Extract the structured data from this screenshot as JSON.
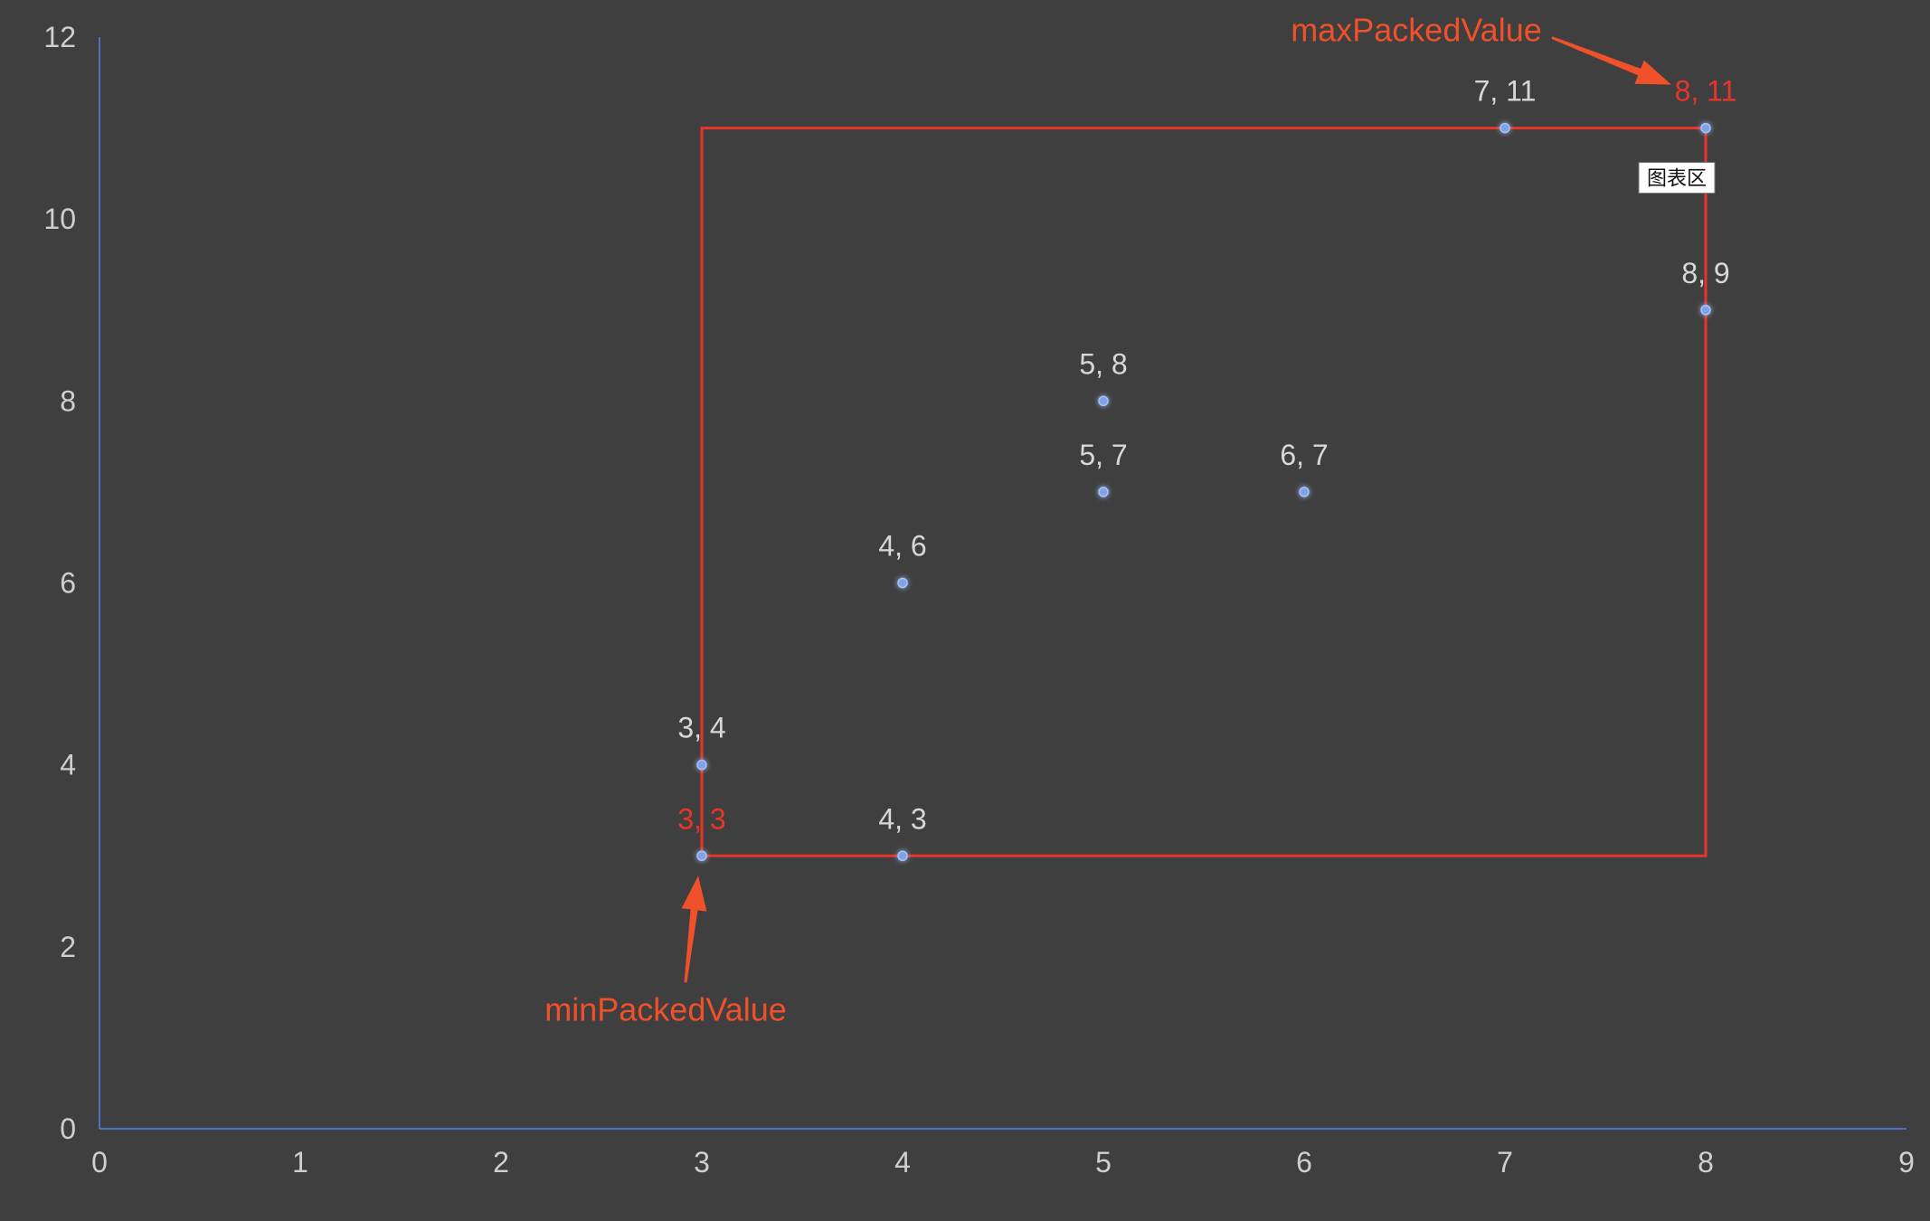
{
  "chart_data": {
    "type": "scatter",
    "title": "",
    "xlabel": "",
    "ylabel": "",
    "xlim": [
      0,
      9
    ],
    "ylim": [
      0,
      12
    ],
    "x_ticks": [
      "0",
      "1",
      "2",
      "3",
      "4",
      "5",
      "6",
      "7",
      "8",
      "9"
    ],
    "y_ticks": [
      "0",
      "2",
      "4",
      "6",
      "8",
      "10",
      "12"
    ],
    "grid": false,
    "legend": "none",
    "points": [
      {
        "x": 3,
        "y": 3,
        "label": "3, 3",
        "highlight": true
      },
      {
        "x": 3,
        "y": 4,
        "label": "3, 4",
        "highlight": false
      },
      {
        "x": 4,
        "y": 3,
        "label": "4, 3",
        "highlight": false
      },
      {
        "x": 4,
        "y": 6,
        "label": "4, 6",
        "highlight": false
      },
      {
        "x": 5,
        "y": 7,
        "label": "5, 7",
        "highlight": false
      },
      {
        "x": 5,
        "y": 8,
        "label": "5, 8",
        "highlight": false
      },
      {
        "x": 6,
        "y": 7,
        "label": "6, 7",
        "highlight": false
      },
      {
        "x": 7,
        "y": 11,
        "label": "7, 11",
        "highlight": false
      },
      {
        "x": 8,
        "y": 9,
        "label": "8, 9",
        "highlight": false
      },
      {
        "x": 8,
        "y": 11,
        "label": "8, 11",
        "highlight": true
      }
    ],
    "bounding_box": {
      "x_min": 3,
      "y_min": 3,
      "x_max": 8,
      "y_max": 11,
      "color": "#e8352a"
    },
    "annotations": [
      {
        "text": "minPackedValue",
        "target": {
          "x": 3,
          "y": 3
        }
      },
      {
        "text": "maxPackedValue",
        "target": {
          "x": 8,
          "y": 11
        }
      }
    ],
    "tooltip": "图表区",
    "colors": {
      "background": "#3f3f3f",
      "axis": "#4a72c4",
      "point": "#7fa3e8",
      "highlight": "#e8352a",
      "annotation": "#f0502a"
    }
  }
}
